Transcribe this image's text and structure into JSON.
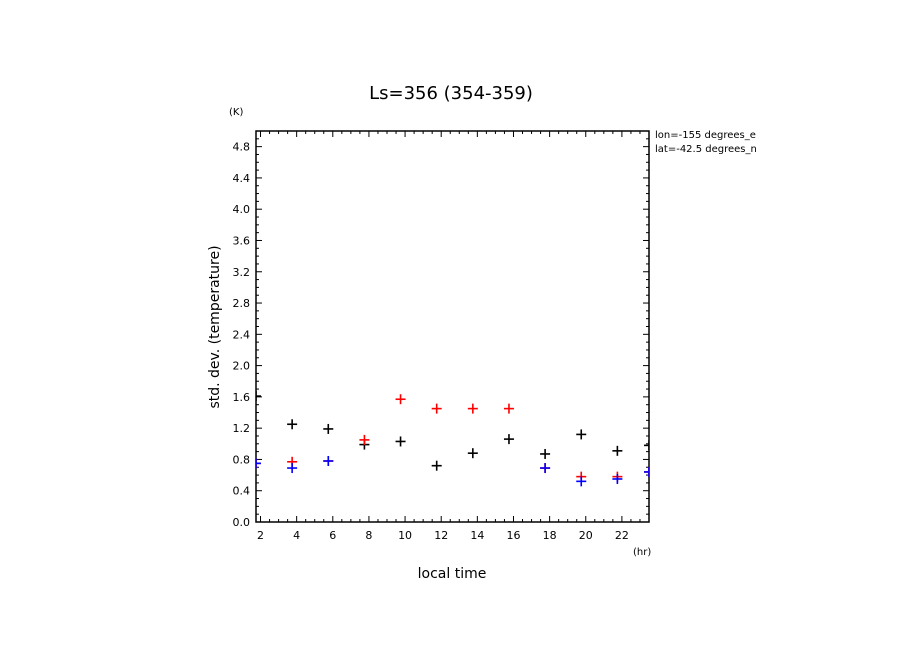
{
  "chart_data": {
    "type": "scatter",
    "title": "Ls=356 (354-359)",
    "xlabel": "local time",
    "ylabel": "std. dev. (temperature)",
    "x_unit": "(hr)",
    "y_unit": "(K)",
    "xlim": [
      1.75,
      23.5
    ],
    "ylim": [
      0.0,
      5.0
    ],
    "x_ticks": [
      "2",
      "4",
      "6",
      "8",
      "10",
      "12",
      "14",
      "16",
      "18",
      "20",
      "22"
    ],
    "y_ticks": [
      "0.0",
      "0.4",
      "0.8",
      "1.2",
      "1.6",
      "2.0",
      "2.4",
      "2.8",
      "3.2",
      "3.6",
      "4.0",
      "4.4",
      "4.8"
    ],
    "annotations": [
      "lon=-155 degrees_e",
      "lat=-42.5 degrees_n"
    ],
    "colors": {
      "black": "#000000",
      "red": "#ff0000",
      "blue": "#0000ff"
    },
    "series": [
      {
        "color": "#000000",
        "x": [
          1.75,
          3.75,
          5.75,
          7.75,
          9.75,
          11.75,
          13.75,
          15.75,
          17.75,
          19.75,
          21.75,
          23.5
        ],
        "y": [
          1.61,
          1.25,
          1.19,
          0.99,
          1.03,
          0.72,
          0.88,
          1.06,
          0.87,
          1.12,
          0.91,
          0.98
        ]
      },
      {
        "color": "#ff0000",
        "x": [
          1.75,
          3.75,
          5.75,
          7.75,
          9.75,
          11.75,
          13.75,
          15.75,
          17.75,
          19.75,
          21.75,
          23.5
        ],
        "y": [
          0.75,
          0.77,
          0.78,
          1.05,
          1.57,
          1.45,
          1.45,
          1.45,
          0.69,
          0.58,
          0.58,
          0.64
        ]
      },
      {
        "color": "#0000ff",
        "x": [
          1.75,
          3.75,
          5.75,
          7.75,
          9.75,
          11.75,
          13.75,
          15.75,
          17.75,
          19.75,
          21.75,
          23.5
        ],
        "y": [
          0.75,
          0.69,
          0.78,
          null,
          null,
          null,
          null,
          null,
          0.69,
          0.52,
          0.55,
          0.64
        ]
      }
    ]
  }
}
